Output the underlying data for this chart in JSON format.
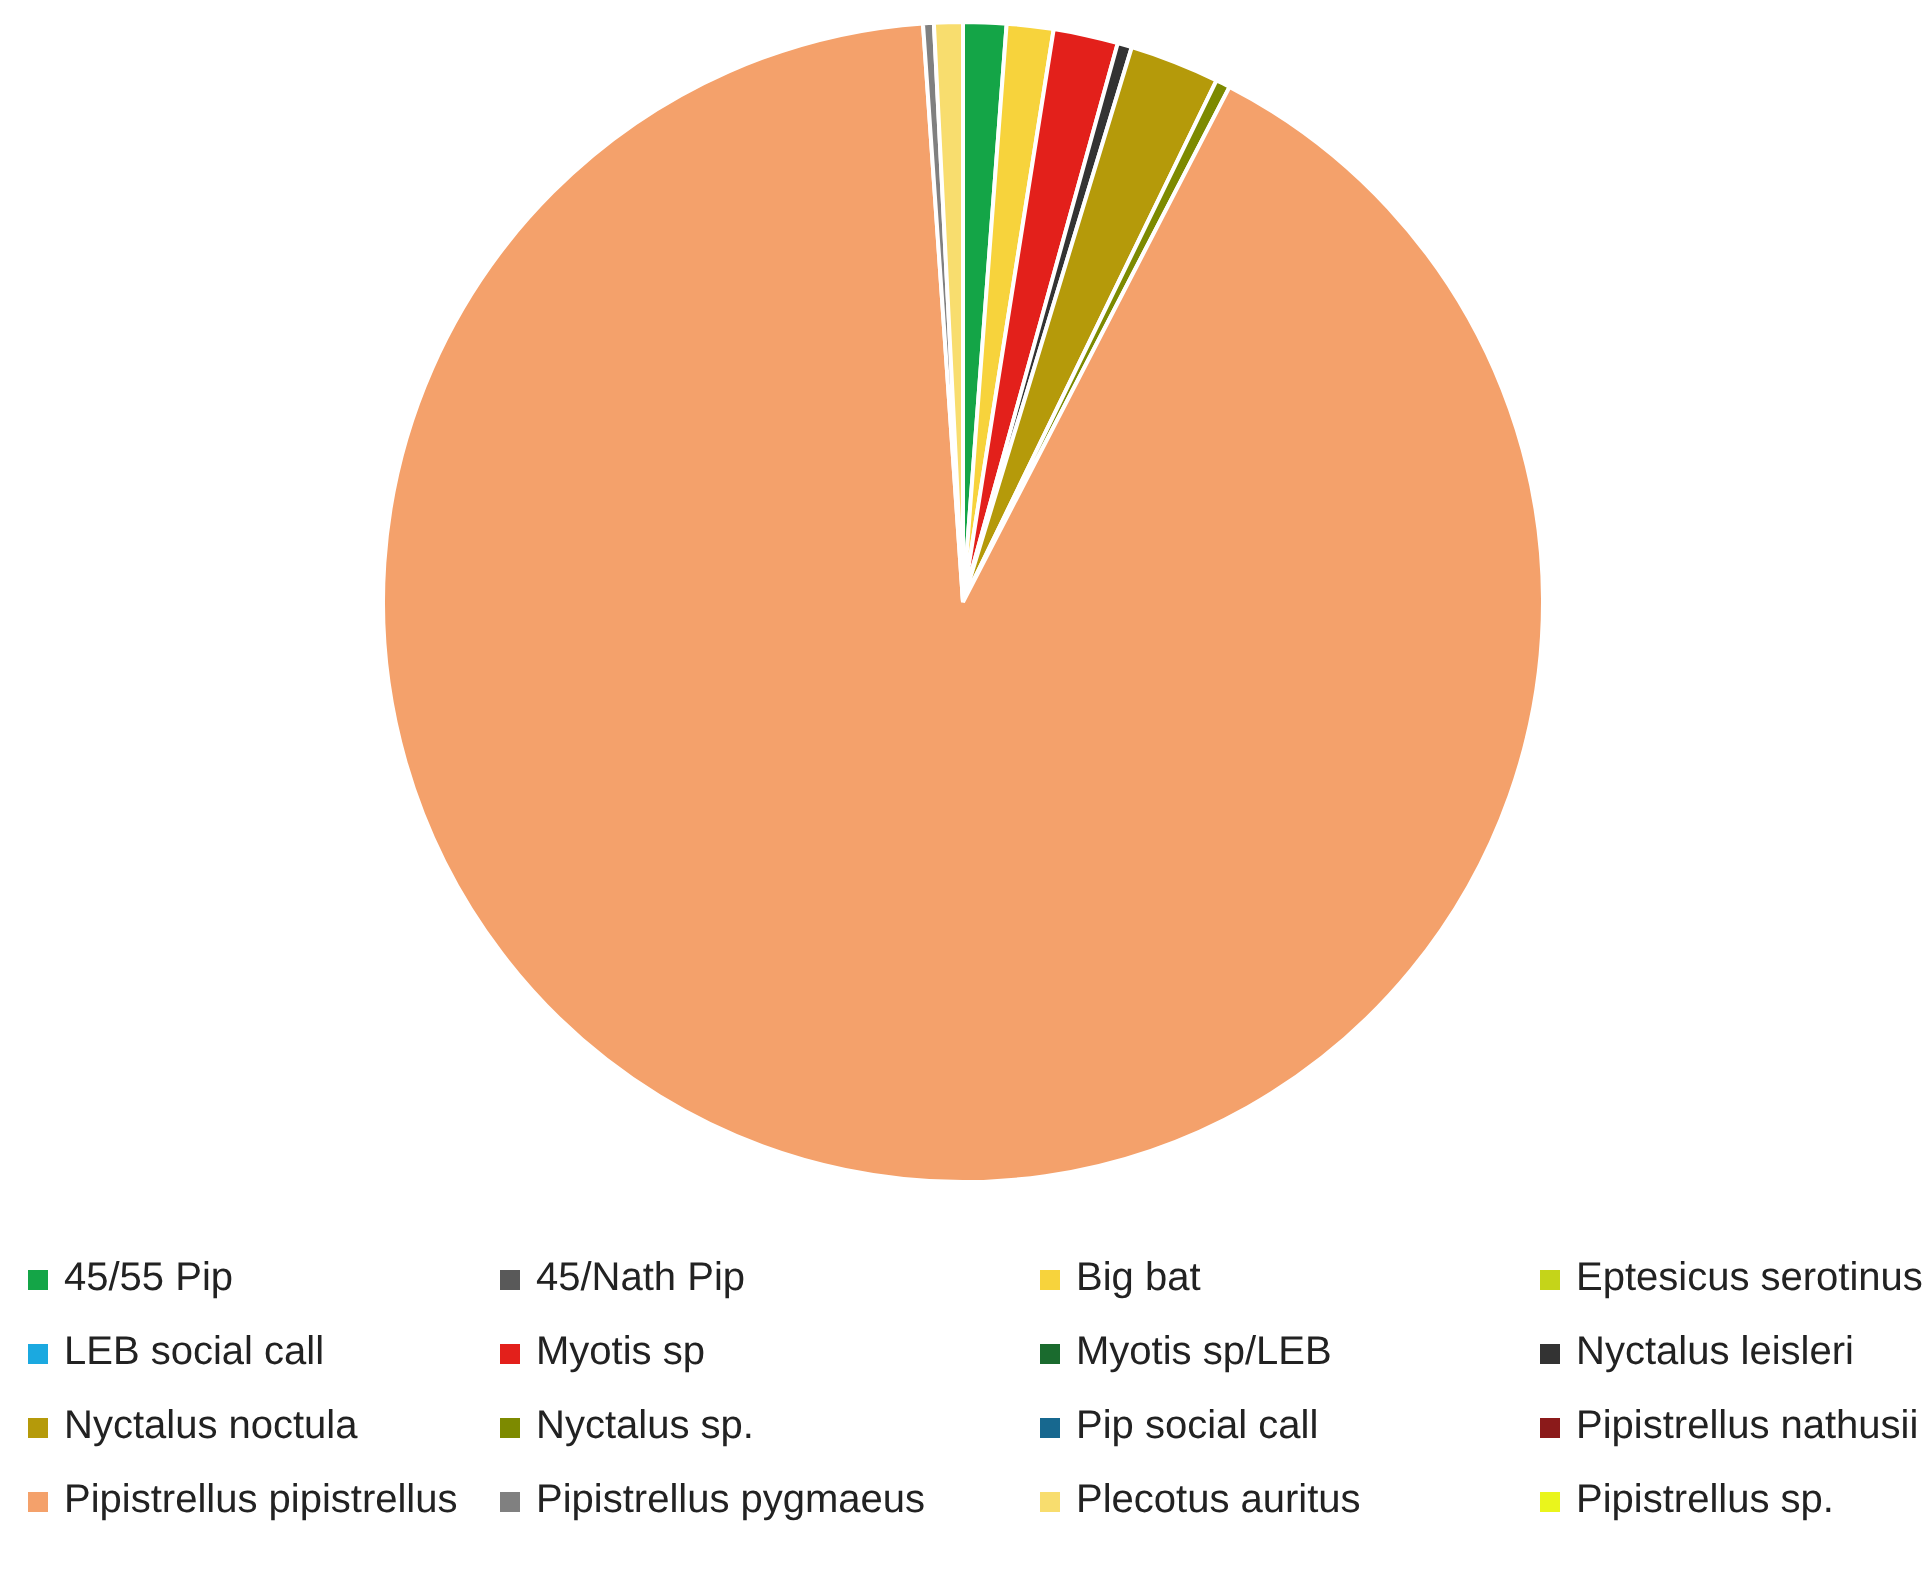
{
  "chart_data": {
    "type": "pie",
    "categories": [
      "45/55 Pip",
      "45/Nath Pip",
      "Big bat",
      "Eptesicus serotinus",
      "LEB social call",
      "Myotis sp",
      "Myotis sp/LEB",
      "Nyctalus leisleri",
      "Nyctalus noctula",
      "Nyctalus sp.",
      "Pip social call",
      "Pipistrellus nathusii",
      "Pipistrellus pipistrellus",
      "Pipistrellus pygmaeus",
      "Plecotus auritus",
      "Pipistrellus sp."
    ],
    "values": [
      1.2,
      0,
      1.3,
      0,
      0,
      1.8,
      0,
      0.4,
      2.5,
      0.4,
      0,
      0,
      91.3,
      0.3,
      0.8,
      0
    ],
    "colors": [
      "#14a547",
      "#595959",
      "#f7d33c",
      "#c5d419",
      "#1ba9e0",
      "#e3201b",
      "#1a6b2e",
      "#333333",
      "#b59a0a",
      "#7d8a00",
      "#17688f",
      "#8b1a1a",
      "#f4a16b",
      "#808080",
      "#f8dd6e",
      "#eaf51c"
    ],
    "legend": "bottom"
  }
}
